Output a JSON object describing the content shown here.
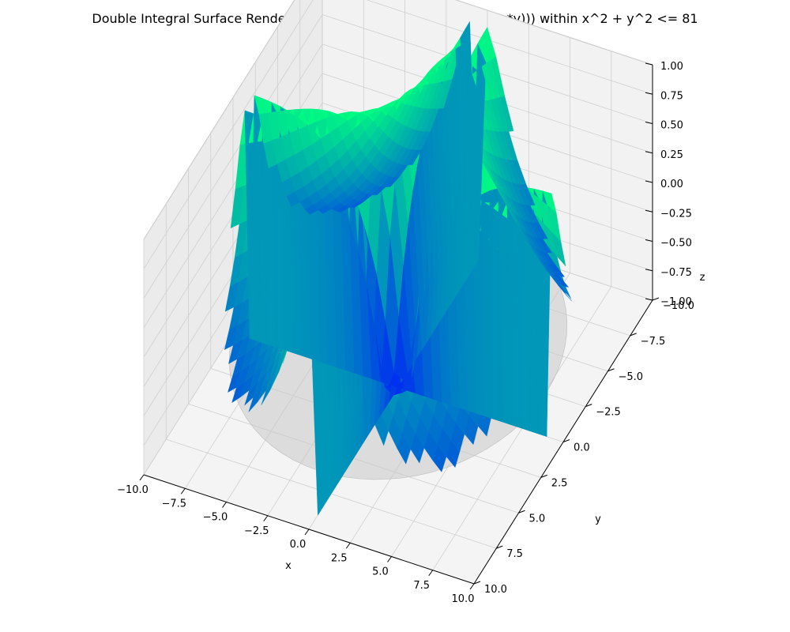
{
  "chart_data": {
    "type": "surface3d",
    "title": "Double Integral Surface Render with Shaded Volume: sin(ln(abs(x*y))) within x^2 + y^2 <= 81",
    "function": "sin(ln(abs(x*y)))",
    "region": "x^2 + y^2 <= 81",
    "xlabel": "x",
    "ylabel": "y",
    "zlabel": "z",
    "xlim": [
      -10,
      10
    ],
    "ylim": [
      -10,
      10
    ],
    "zlim": [
      -1,
      1
    ],
    "xticks": [
      -10.0,
      -7.5,
      -5.0,
      -2.5,
      0.0,
      2.5,
      5.0,
      7.5,
      10.0
    ],
    "yticks": [
      -10.0,
      -7.5,
      -5.0,
      -2.5,
      0.0,
      2.5,
      5.0,
      7.5,
      10.0
    ],
    "zticks": [
      -1.0,
      -0.75,
      -0.5,
      -0.25,
      0.0,
      0.25,
      0.5,
      0.75,
      1.0
    ],
    "xtick_labels": [
      "−10.0",
      "−7.5",
      "−5.0",
      "−2.5",
      "0.0",
      "2.5",
      "5.0",
      "7.5",
      "10.0"
    ],
    "ytick_labels": [
      "−10.0",
      "−7.5",
      "−5.0",
      "−2.5",
      "0.0",
      "2.5",
      "5.0",
      "7.5",
      "10.0"
    ],
    "ztick_labels": [
      "−1.00",
      "−0.75",
      "−0.50",
      "−0.25",
      "0.00",
      "0.25",
      "0.50",
      "0.75",
      "1.00"
    ],
    "colormap": [
      "#0030f0",
      "#00ff80"
    ],
    "shaded_volume_color": "#c8c8c8",
    "grid": true
  }
}
